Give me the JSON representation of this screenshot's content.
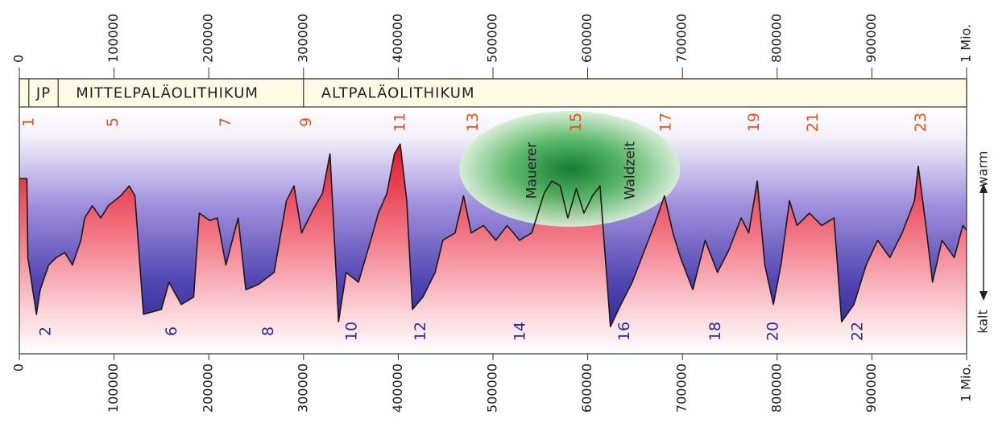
{
  "chart_data": {
    "type": "line",
    "xlim": [
      0,
      1000000
    ],
    "ylim": [
      0,
      100
    ],
    "xticks": [
      0,
      100000,
      200000,
      300000,
      400000,
      500000,
      600000,
      700000,
      800000,
      900000,
      {
        "value": 1000000,
        "label": "1 Mio."
      }
    ],
    "x": [
      0,
      8000,
      9000,
      18000,
      22000,
      31000,
      39000,
      48000,
      56000,
      65000,
      69000,
      77000,
      86000,
      94000,
      107000,
      116000,
      122000,
      131000,
      150000,
      158000,
      171000,
      184000,
      190000,
      201000,
      209000,
      218000,
      231000,
      239000,
      252000,
      269000,
      282000,
      290000,
      298000,
      311000,
      320000,
      328000,
      337000,
      345000,
      358000,
      371000,
      379000,
      388000,
      396000,
      402000,
      409000,
      415000,
      426000,
      439000,
      447000,
      460000,
      469000,
      477000,
      490000,
      503000,
      515000,
      528000,
      541000,
      554000,
      562000,
      571000,
      579000,
      588000,
      596000,
      605000,
      613000,
      624000,
      635000,
      647000,
      660000,
      673000,
      681000,
      690000,
      698000,
      711000,
      724000,
      737000,
      749000,
      762000,
      770000,
      779000,
      787000,
      796000,
      804000,
      813000,
      821000,
      834000,
      847000,
      860000,
      868000,
      881000,
      894000,
      906000,
      919000,
      932000,
      945000,
      949000,
      957000,
      964000,
      974000,
      987000,
      996000,
      1000000
    ],
    "values": [
      71,
      71,
      39,
      16,
      26,
      36,
      39,
      41,
      36,
      46,
      55,
      60,
      55,
      60,
      64,
      68,
      64,
      16,
      18,
      29,
      20,
      23,
      57,
      54,
      55,
      36,
      55,
      26,
      28,
      33,
      62,
      68,
      49,
      59,
      65,
      81,
      13,
      33,
      29,
      46,
      57,
      65,
      81,
      85,
      62,
      18,
      23,
      33,
      46,
      49,
      64,
      49,
      52,
      46,
      52,
      46,
      49,
      65,
      70,
      68,
      55,
      67,
      57,
      64,
      68,
      11,
      20,
      29,
      42,
      55,
      64,
      49,
      39,
      26,
      46,
      33,
      42,
      55,
      49,
      70,
      36,
      20,
      36,
      62,
      52,
      57,
      52,
      55,
      13,
      20,
      36,
      46,
      39,
      49,
      62,
      76,
      52,
      29,
      46,
      39,
      52,
      50
    ],
    "line_color": "#1a1a1a",
    "periods": [
      {
        "label": "JP",
        "start": 10000,
        "end": 41000
      },
      {
        "label": "MITTELPALÄOLITHIKUM",
        "start": 41000,
        "end": 300000
      },
      {
        "label": "ALTPALÄOLITHIKUM",
        "start": 300000,
        "end": 1000000
      }
    ],
    "stages": [
      {
        "label": "1",
        "x": 10000,
        "position": "top"
      },
      {
        "label": "2",
        "x": 28000,
        "position": "bottom"
      },
      {
        "label": "5",
        "x": 99000,
        "position": "top"
      },
      {
        "label": "6",
        "x": 161000,
        "position": "bottom"
      },
      {
        "label": "7",
        "x": 218000,
        "position": "top"
      },
      {
        "label": "8",
        "x": 263000,
        "position": "bottom"
      },
      {
        "label": "9",
        "x": 303000,
        "position": "top"
      },
      {
        "label": "10",
        "x": 351000,
        "position": "bottom"
      },
      {
        "label": "11",
        "x": 402000,
        "position": "top"
      },
      {
        "label": "12",
        "x": 424000,
        "position": "bottom"
      },
      {
        "label": "13",
        "x": 479000,
        "position": "top"
      },
      {
        "label": "14",
        "x": 529000,
        "position": "bottom"
      },
      {
        "label": "15",
        "x": 588000,
        "position": "top"
      },
      {
        "label": "16",
        "x": 639000,
        "position": "bottom"
      },
      {
        "label": "17",
        "x": 683000,
        "position": "top"
      },
      {
        "label": "18",
        "x": 735000,
        "position": "bottom"
      },
      {
        "label": "19",
        "x": 776000,
        "position": "top"
      },
      {
        "label": "20",
        "x": 796000,
        "position": "bottom"
      },
      {
        "label": "21",
        "x": 838000,
        "position": "top"
      },
      {
        "label": "22",
        "x": 885000,
        "position": "bottom"
      },
      {
        "label": "23",
        "x": 952000,
        "position": "top"
      }
    ],
    "stage_colors": {
      "top": "#e8501e",
      "bottom": "#2a2d9a"
    },
    "annotation": {
      "x": 581000,
      "text": [
        "Mauerer",
        "Waldzeit"
      ]
    },
    "scale_labels": {
      "top": "warm",
      "bottom": "kalt"
    }
  }
}
